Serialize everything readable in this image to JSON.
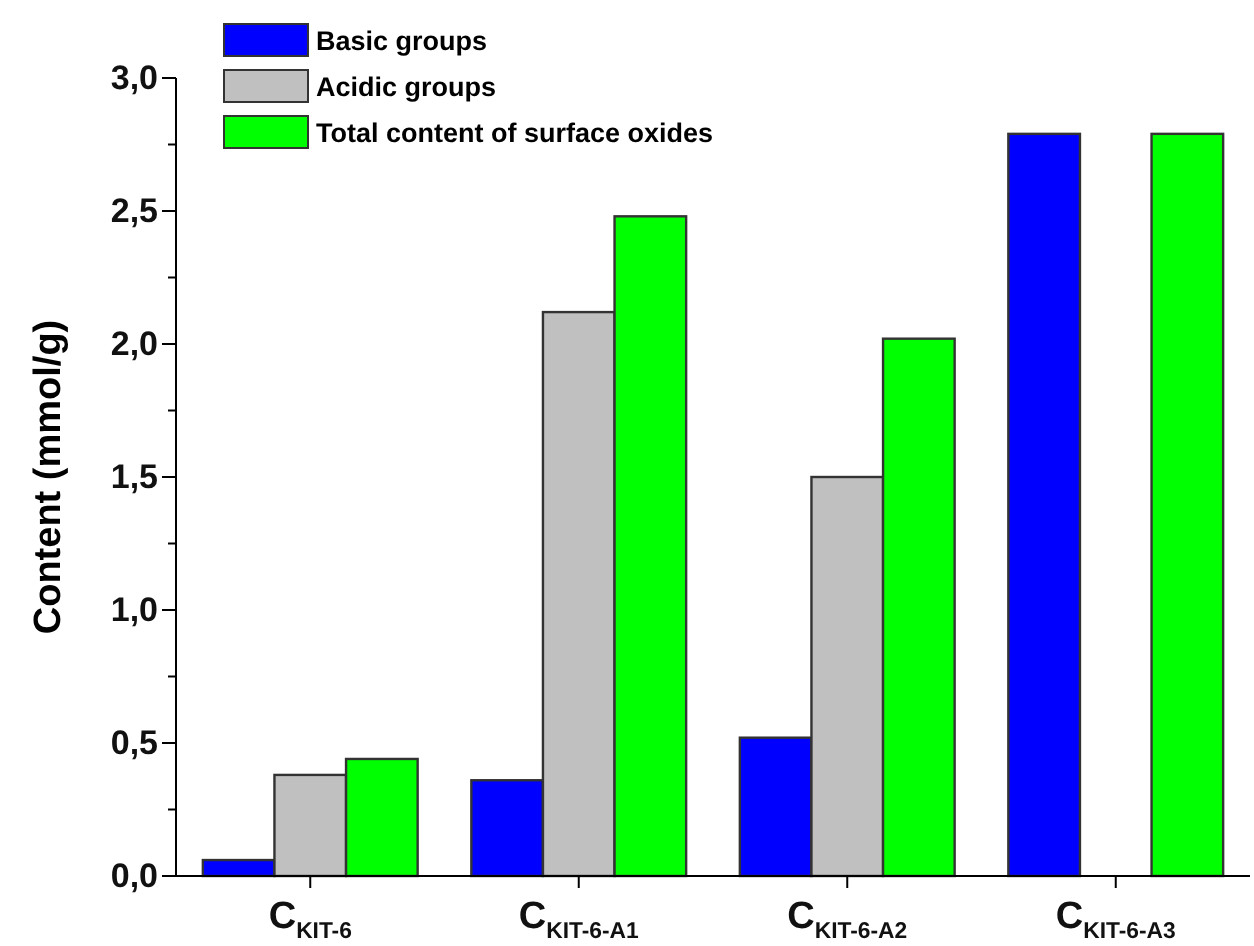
{
  "chart_data": {
    "type": "bar",
    "ylabel": "Content (mmol/g)",
    "categories": [
      "C$_{KIT-6}$",
      "C$_{KIT-6-A1}$",
      "C$_{KIT-6-A2}$",
      "C$_{KIT-6-A3}$"
    ],
    "series": [
      {
        "name": "Basic groups",
        "color": "#0000ff",
        "values": [
          0.06,
          0.36,
          0.52,
          2.79
        ]
      },
      {
        "name": "Acidic groups",
        "color": "#c0c0c0",
        "values": [
          0.38,
          2.12,
          1.5,
          null
        ]
      },
      {
        "name": "Total content of surface oxides",
        "color": "#00ff00",
        "values": [
          0.44,
          2.48,
          2.02,
          2.79
        ]
      }
    ],
    "ylim": [
      0,
      3.0
    ],
    "yticks": [
      {
        "value": 0,
        "label": "0,0"
      },
      {
        "value": 0.25,
        "label": null
      },
      {
        "value": 0.5,
        "label": "0,5"
      },
      {
        "value": 0.75,
        "label": null
      },
      {
        "value": 1,
        "label": "1,0"
      },
      {
        "value": 1.25,
        "label": null
      },
      {
        "value": 1.5,
        "label": "1,5"
      },
      {
        "value": 1.75,
        "label": null
      },
      {
        "value": 2,
        "label": "2,0"
      },
      {
        "value": 2.25,
        "label": null
      },
      {
        "value": 2.5,
        "label": "2,5"
      },
      {
        "value": 2.75,
        "label": null
      },
      {
        "value": 3,
        "label": "3,0"
      }
    ],
    "legend": "top left",
    "grid": false
  }
}
